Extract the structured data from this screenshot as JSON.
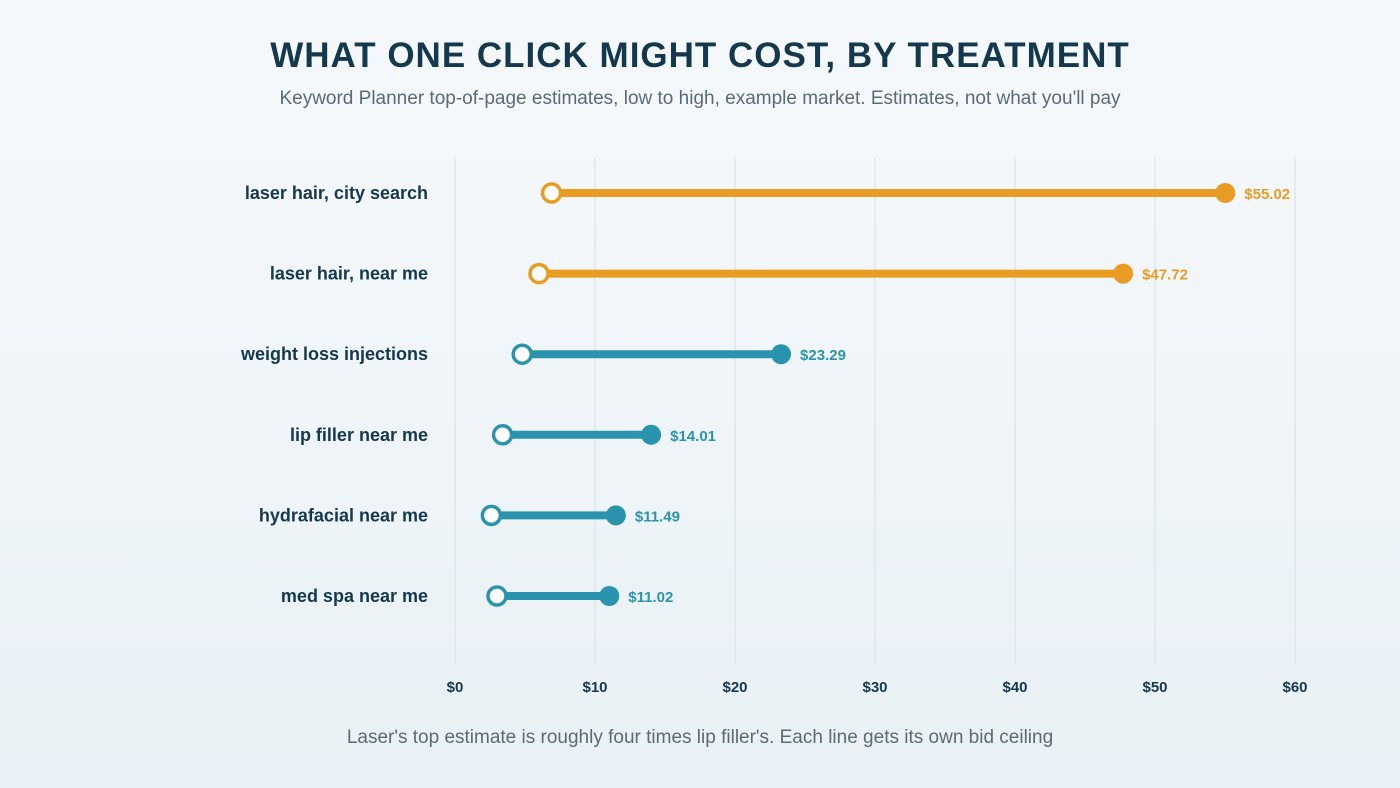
{
  "chart_data": {
    "type": "dumbbell",
    "title": "WHAT ONE CLICK MIGHT COST, BY TREATMENT",
    "subtitle": "Keyword Planner top-of-page estimates, low to high, example market. Estimates, not what you'll pay",
    "footer": "Laser's top estimate is roughly four times lip filler's. Each line gets its own bid ceiling",
    "xlim": [
      0,
      60
    ],
    "x_ticks": [
      0,
      10,
      20,
      30,
      40,
      50,
      60
    ],
    "x_tick_labels": [
      "$0",
      "$10",
      "$20",
      "$30",
      "$40",
      "$50",
      "$60"
    ],
    "grid": "vertical",
    "colors": {
      "highlight": "#e89c22",
      "default": "#2a93ad",
      "grid": "#dbe3e8"
    },
    "rows": [
      {
        "category": "laser hair, city search",
        "low": 6.9,
        "high": 55.02,
        "high_label": "$55.02",
        "highlight": true
      },
      {
        "category": "laser hair, near me",
        "low": 6.0,
        "high": 47.72,
        "high_label": "$47.72",
        "highlight": true
      },
      {
        "category": "weight loss injections",
        "low": 4.8,
        "high": 23.29,
        "high_label": "$23.29",
        "highlight": false
      },
      {
        "category": "lip filler near me",
        "low": 3.4,
        "high": 14.01,
        "high_label": "$14.01",
        "highlight": false
      },
      {
        "category": "hydrafacial near me",
        "low": 2.6,
        "high": 11.49,
        "high_label": "$11.49",
        "highlight": false
      },
      {
        "category": "med spa near me",
        "low": 3.0,
        "high": 11.02,
        "high_label": "$11.02",
        "highlight": false
      }
    ]
  }
}
